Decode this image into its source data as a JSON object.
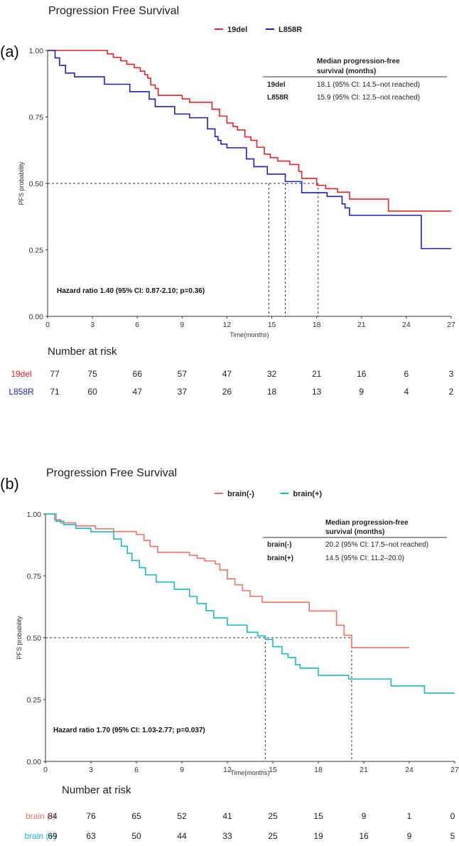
{
  "chart_data": [
    {
      "panel_label": "(a)",
      "type": "line",
      "subtype": "kaplan-meier",
      "title": "Progression Free Survival",
      "xlabel": "Time(months)",
      "ylabel": "PFS probability",
      "xlim": [
        0,
        27
      ],
      "ylim": [
        0,
        1
      ],
      "xticks": [
        "0",
        "3",
        "6",
        "9",
        "12",
        "15",
        "18",
        "21",
        "24",
        "27"
      ],
      "yticks": [
        "0.00",
        "0.25",
        "0.50",
        "0.75",
        "1.00"
      ],
      "legend_position": "top",
      "series": [
        {
          "name": "19del",
          "color": "#e8222a",
          "steps": [
            [
              0,
              1.0
            ],
            [
              4.0,
              0.987
            ],
            [
              4.4,
              0.974
            ],
            [
              4.9,
              0.961
            ],
            [
              5.3,
              0.948
            ],
            [
              5.8,
              0.935
            ],
            [
              6.2,
              0.922
            ],
            [
              6.5,
              0.909
            ],
            [
              6.7,
              0.896
            ],
            [
              6.9,
              0.87
            ],
            [
              7.2,
              0.857
            ],
            [
              7.4,
              0.831
            ],
            [
              9.0,
              0.818
            ],
            [
              9.5,
              0.805
            ],
            [
              11.0,
              0.779
            ],
            [
              11.5,
              0.753
            ],
            [
              12.0,
              0.727
            ],
            [
              12.4,
              0.714
            ],
            [
              12.7,
              0.701
            ],
            [
              13.2,
              0.675
            ],
            [
              13.6,
              0.662
            ],
            [
              14.0,
              0.636
            ],
            [
              14.5,
              0.61
            ],
            [
              14.9,
              0.597
            ],
            [
              15.4,
              0.584
            ],
            [
              16.2,
              0.571
            ],
            [
              16.8,
              0.545
            ],
            [
              17.0,
              0.519
            ],
            [
              18.0,
              0.493
            ],
            [
              18.6,
              0.48
            ],
            [
              19.4,
              0.467
            ],
            [
              20.2,
              0.441
            ],
            [
              22.8,
              0.396
            ],
            [
              27.0,
              0.396
            ]
          ],
          "median": 18.1,
          "number_at_risk": [
            "77",
            "75",
            "66",
            "57",
            "47",
            "32",
            "21",
            "16",
            "6",
            "3"
          ]
        },
        {
          "name": "L858R",
          "color": "#1f1fc2",
          "steps": [
            [
              0,
              1.0
            ],
            [
              0.5,
              0.972
            ],
            [
              0.8,
              0.944
            ],
            [
              1.2,
              0.915
            ],
            [
              1.8,
              0.901
            ],
            [
              3.8,
              0.873
            ],
            [
              5.5,
              0.845
            ],
            [
              6.8,
              0.817
            ],
            [
              7.2,
              0.789
            ],
            [
              8.5,
              0.761
            ],
            [
              9.5,
              0.747
            ],
            [
              10.7,
              0.705
            ],
            [
              11.2,
              0.676
            ],
            [
              11.4,
              0.662
            ],
            [
              11.6,
              0.648
            ],
            [
              12.0,
              0.634
            ],
            [
              13.3,
              0.592
            ],
            [
              13.8,
              0.563
            ],
            [
              14.7,
              0.535
            ],
            [
              15.9,
              0.507
            ],
            [
              17.0,
              0.465
            ],
            [
              18.7,
              0.451
            ],
            [
              19.7,
              0.423
            ],
            [
              19.9,
              0.408
            ],
            [
              20.2,
              0.38
            ],
            [
              25.0,
              0.255
            ],
            [
              27.0,
              0.255
            ]
          ],
          "median": 15.9,
          "number_at_risk": [
            "71",
            "60",
            "47",
            "37",
            "26",
            "18",
            "13",
            "9",
            "4",
            "2"
          ]
        }
      ],
      "median_lines": [
        14.8,
        15.9,
        18.1
      ],
      "median_table": {
        "header": [
          "Median progression-free",
          "survival (months)"
        ],
        "rows": [
          {
            "label": "19del",
            "value": "18.1 (95% CI: 14.5–not reached)"
          },
          {
            "label": "L858R",
            "value": "15.9 (95% CI: 12.5–not reached)"
          }
        ]
      },
      "hazard_text": "Hazard ratio 1.40 (95% CI: 0.87-2.10; p=0.36)",
      "risk_title": "Number at risk"
    },
    {
      "panel_label": "(b)",
      "type": "line",
      "subtype": "kaplan-meier",
      "title": "Progression Free Survival",
      "xlabel": "Time(months)",
      "ylabel": "PFS probability",
      "xlim": [
        0,
        27
      ],
      "ylim": [
        0,
        1
      ],
      "xticks": [
        "0",
        "3",
        "6",
        "9",
        "12",
        "15",
        "18",
        "21",
        "24",
        "27"
      ],
      "yticks": [
        "0.00",
        "0.25",
        "0.50",
        "0.75",
        "1.00"
      ],
      "legend_position": "top",
      "series": [
        {
          "name": "brain(-)",
          "color": "#f07266",
          "risk_label": "brain (-)",
          "steps": [
            [
              0,
              1.0
            ],
            [
              0.6,
              0.976
            ],
            [
              1.0,
              0.964
            ],
            [
              2.0,
              0.952
            ],
            [
              3.3,
              0.94
            ],
            [
              4.5,
              0.929
            ],
            [
              6.0,
              0.917
            ],
            [
              6.5,
              0.893
            ],
            [
              6.9,
              0.869
            ],
            [
              7.4,
              0.845
            ],
            [
              9.5,
              0.833
            ],
            [
              10.0,
              0.821
            ],
            [
              10.5,
              0.81
            ],
            [
              11.2,
              0.798
            ],
            [
              11.5,
              0.774
            ],
            [
              12.0,
              0.738
            ],
            [
              12.5,
              0.714
            ],
            [
              13.0,
              0.69
            ],
            [
              13.5,
              0.667
            ],
            [
              14.3,
              0.643
            ],
            [
              17.4,
              0.608
            ],
            [
              19.2,
              0.55
            ],
            [
              19.7,
              0.51
            ],
            [
              20.2,
              0.46
            ],
            [
              24.0,
              0.46
            ]
          ],
          "median": 20.2,
          "number_at_risk": [
            "84",
            "76",
            "65",
            "52",
            "41",
            "25",
            "15",
            "9",
            "1",
            "0"
          ]
        },
        {
          "name": "brain(+)",
          "color": "#1ab8c4",
          "risk_label": "brain (+)",
          "steps": [
            [
              0,
              1.0
            ],
            [
              0.7,
              0.971
            ],
            [
              1.2,
              0.957
            ],
            [
              2.0,
              0.942
            ],
            [
              3.0,
              0.928
            ],
            [
              4.5,
              0.899
            ],
            [
              5.0,
              0.87
            ],
            [
              5.4,
              0.841
            ],
            [
              5.7,
              0.812
            ],
            [
              6.2,
              0.783
            ],
            [
              6.6,
              0.754
            ],
            [
              7.3,
              0.725
            ],
            [
              8.5,
              0.696
            ],
            [
              9.5,
              0.667
            ],
            [
              10.0,
              0.638
            ],
            [
              10.6,
              0.609
            ],
            [
              11.1,
              0.58
            ],
            [
              12.0,
              0.551
            ],
            [
              13.3,
              0.522
            ],
            [
              14.0,
              0.507
            ],
            [
              14.5,
              0.493
            ],
            [
              15.0,
              0.464
            ],
            [
              15.6,
              0.435
            ],
            [
              16.0,
              0.42
            ],
            [
              16.5,
              0.391
            ],
            [
              16.8,
              0.377
            ],
            [
              18.0,
              0.348
            ],
            [
              20.0,
              0.333
            ],
            [
              22.8,
              0.305
            ],
            [
              25.0,
              0.276
            ],
            [
              27.0,
              0.276
            ]
          ],
          "median": 14.5,
          "number_at_risk": [
            "69",
            "63",
            "50",
            "44",
            "33",
            "25",
            "19",
            "16",
            "9",
            "5"
          ]
        }
      ],
      "median_lines": [
        14.5,
        20.2
      ],
      "median_table": {
        "header": [
          "Median progression-free",
          "survival (months)"
        ],
        "rows": [
          {
            "label": "brain(-)",
            "value": "20.2 (95% CI: 17.5–not reached)"
          },
          {
            "label": "brain(+)",
            "value": "14.5 (95% CI: 11.2–20.0)"
          }
        ]
      },
      "hazard_text": "Hazard ratio 1.70 (95% CI: 1.03-2.77; p=0.037)",
      "risk_title": "Number at risk"
    }
  ]
}
